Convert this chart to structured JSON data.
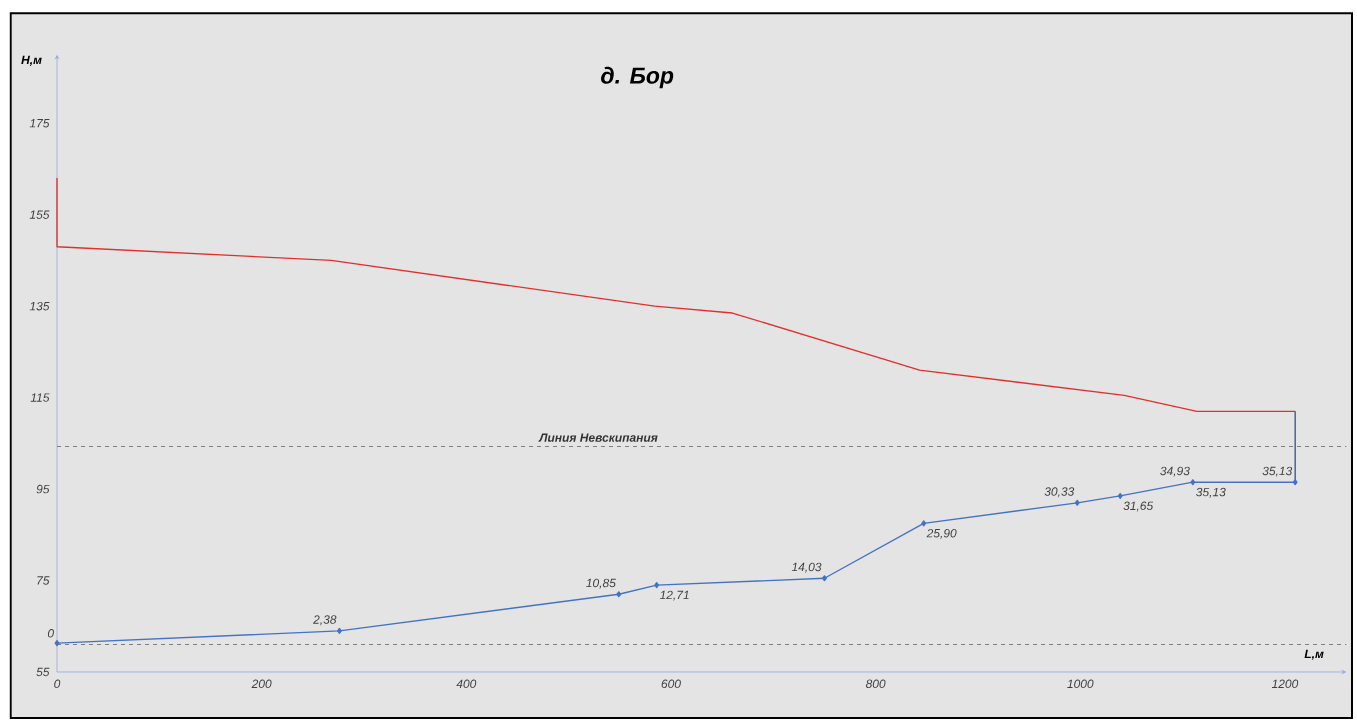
{
  "chart_data": {
    "type": "line",
    "title": "д. Бор",
    "xlabel": "L,м",
    "ylabel": "H,м",
    "xlim": [
      0,
      1260
    ],
    "ylim": [
      55,
      190
    ],
    "xticks": [
      0,
      200,
      400,
      600,
      800,
      1000,
      1200
    ],
    "yticks": [
      55,
      75,
      95,
      115,
      135,
      155,
      175
    ],
    "marker": "diamond",
    "line_style": "solid",
    "series": [
      {
        "color": "#e0302c",
        "marker": "none",
        "x": [
          0,
          0,
          268,
          584,
          660,
          843,
          1043,
          1114,
          1210
        ],
        "values": [
          163,
          148,
          145,
          135,
          133.5,
          121,
          115.5,
          112,
          112
        ]
      },
      {
        "color": "#4472c4",
        "x": [
          0,
          276,
          549,
          586,
          750,
          847,
          997,
          1039,
          1110,
          1210
        ],
        "values": [
          61.3,
          64,
          72,
          74,
          75.5,
          87.5,
          92,
          93.5,
          96.5,
          96.5
        ]
      },
      {
        "color": "#2f5597",
        "marker": "none",
        "x": [
          1210,
          1210
        ],
        "values": [
          112,
          96.5
        ]
      }
    ],
    "annotations": [
      {
        "text": "0",
        "x": 0,
        "y": 61.3
      },
      {
        "text": "2,38",
        "x": 276,
        "y": 64
      },
      {
        "text": "10,85",
        "x": 549,
        "y": 72
      },
      {
        "text": "12,71",
        "x": 586,
        "y": 74
      },
      {
        "text": "14,03",
        "x": 750,
        "y": 75.5
      },
      {
        "text": "25,90",
        "x": 847,
        "y": 87.5
      },
      {
        "text": "30,33",
        "x": 997,
        "y": 92
      },
      {
        "text": "31,65",
        "x": 1039,
        "y": 93.5
      },
      {
        "text": "34,93",
        "x": 1110,
        "y": 96.5
      },
      {
        "text": "35,13",
        "x": 1110,
        "y": 96.5
      },
      {
        "text": "35,13",
        "x": 1210,
        "y": 96.5
      }
    ],
    "ref_lines": [
      {
        "axis": "y",
        "value": 104.3,
        "label": "Линия Невскипания",
        "color": "#7f7f7f",
        "line_style": "dashed"
      },
      {
        "axis": "y",
        "value": 61,
        "color": "#7f7f7f",
        "line_style": "dashed"
      }
    ]
  }
}
